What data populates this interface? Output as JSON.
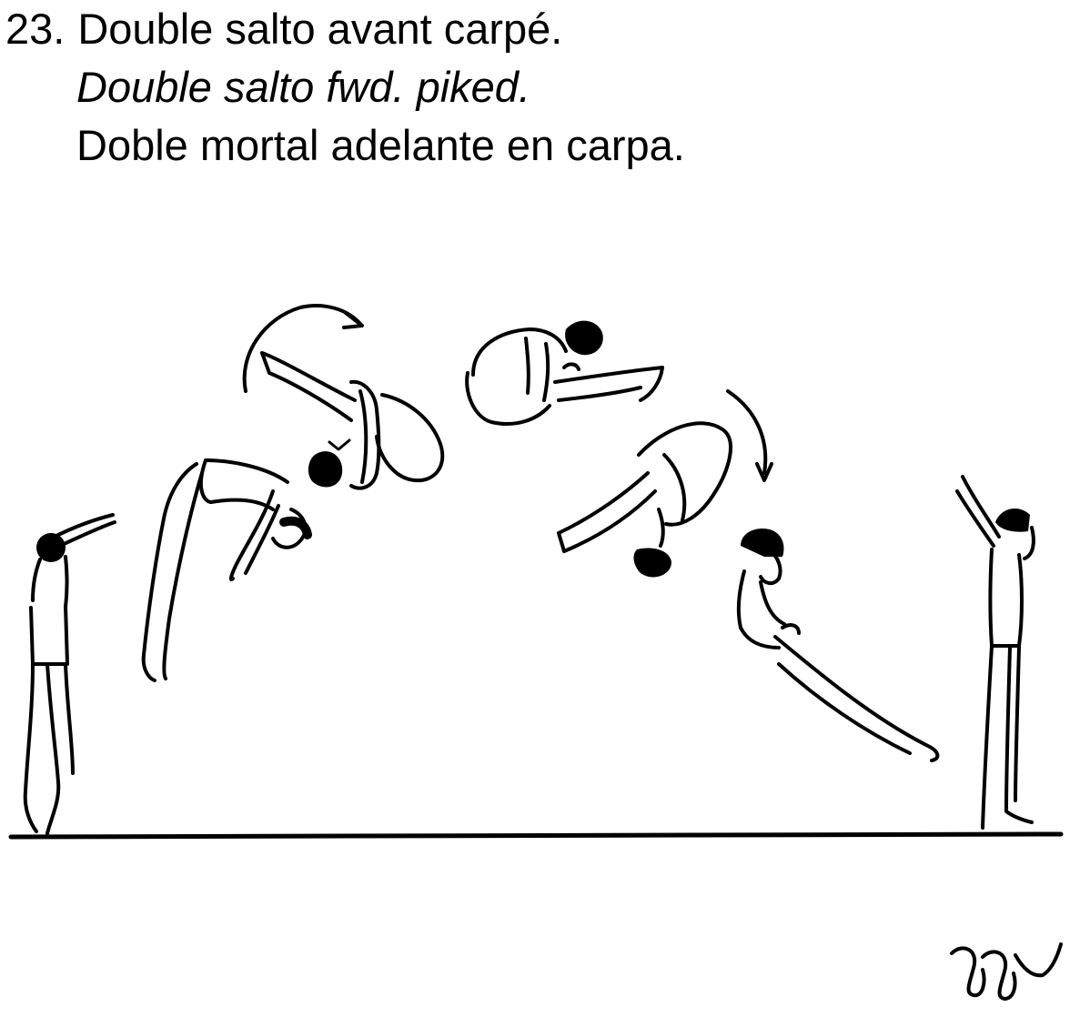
{
  "skill": {
    "number": "23.",
    "title_fr": "Double salto avant carpé.",
    "title_en": "Double salto fwd. piked.",
    "title_es": "Doble mortal adelante en carpa."
  },
  "illustration": {
    "figures": [
      "standing-arms-forward",
      "takeoff-arched",
      "first-salto-piked-inverted",
      "top-piked-horizontal",
      "second-salto-piked-inverted",
      "landing-approach-piked",
      "standing-arms-up"
    ],
    "rotation_arrows": 2,
    "line_color": "#000000"
  }
}
